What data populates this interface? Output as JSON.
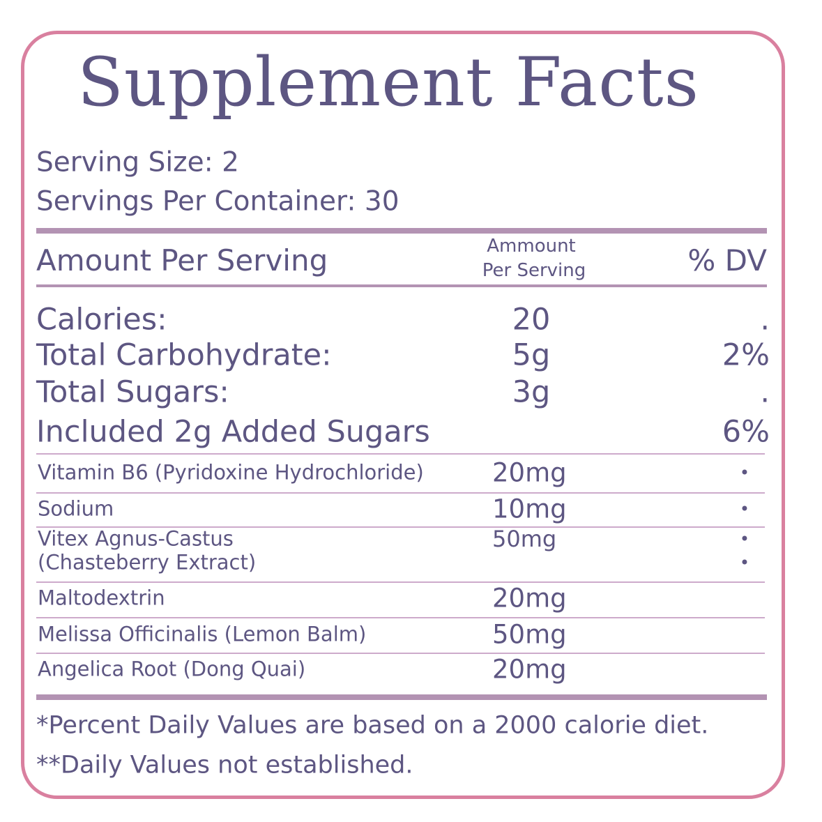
{
  "title": "Supplement Facts",
  "serving": {
    "serving_size": "Serving Size: 2",
    "servings_per_container": "Servings Per Container: 30"
  },
  "header": {
    "label": "Amount Per Serving",
    "amount_lines": [
      "Ammount",
      "Per Serving"
    ],
    "dv": "% DV"
  },
  "main_rows": [
    {
      "name": "Calories:",
      "amount": "20",
      "dv": "."
    },
    {
      "name": "Total Carbohydrate:",
      "amount": "5g",
      "dv": "2%"
    },
    {
      "name": "Total Sugars:",
      "amount": "3g",
      "dv": "."
    },
    {
      "name": "Included 2g Added Sugars",
      "dv": "6%"
    }
  ],
  "ingredients": [
    {
      "name_lines": [
        "Vitamin B6 (Pyridoxine Hydrochloride)"
      ],
      "amount": "20mg",
      "dv_lines": [
        "•"
      ]
    },
    {
      "name_lines": [
        "Sodium"
      ],
      "amount": "10mg",
      "dv_lines": [
        "•"
      ]
    },
    {
      "name_lines": [
        "Vitex Agnus-Castus",
        "(Chasteberry Extract)"
      ],
      "amount": "50mg",
      "dv_lines": [
        "•",
        "•"
      ]
    },
    {
      "name_lines": [
        "Maltodextrin"
      ],
      "amount": "20mg"
    },
    {
      "name_lines": [
        "Melissa Officinalis (Lemon Balm)"
      ],
      "amount": "50mg"
    },
    {
      "name_lines": [
        "Angelica Root (Dong Quai)"
      ],
      "amount": "20mg"
    }
  ],
  "footnotes": [
    "*Percent Daily Values are based on a 2000 calorie diet.",
    "**Daily Values not established."
  ]
}
